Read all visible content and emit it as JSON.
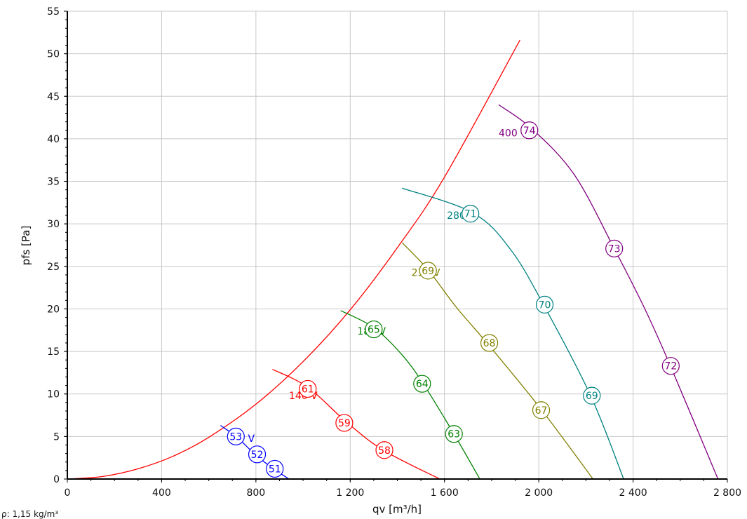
{
  "chart_data": {
    "type": "line",
    "xlabel": "qv [m³/h]",
    "ylabel": "pfs [Pa]",
    "xlim": [
      0,
      2800
    ],
    "ylim": [
      0,
      55
    ],
    "x_ticks": [
      0,
      400,
      800,
      1200,
      1600,
      2000,
      2400,
      2800
    ],
    "x_tick_labels": [
      "0",
      "400",
      "800",
      "1 200",
      "1 600",
      "2 000",
      "2 400",
      "2 800"
    ],
    "y_ticks": [
      0,
      5,
      10,
      15,
      20,
      25,
      30,
      35,
      40,
      45,
      50,
      55
    ],
    "y_tick_labels": [
      "0",
      "5",
      "10",
      "15",
      "20",
      "25",
      "30",
      "35",
      "40",
      "45",
      "50",
      "55"
    ],
    "grid": true,
    "footnote": "ρ: 1,15 kg/m³",
    "system_curve": {
      "color": "#ff0000",
      "points": [
        [
          0,
          0
        ],
        [
          150,
          0.3
        ],
        [
          300,
          1.2
        ],
        [
          450,
          2.7
        ],
        [
          600,
          4.9
        ],
        [
          800,
          8.8
        ],
        [
          1000,
          13.8
        ],
        [
          1200,
          19.9
        ],
        [
          1400,
          27.2
        ],
        [
          1600,
          35.5
        ],
        [
          1920,
          51.6
        ]
      ]
    },
    "series": [
      {
        "name": "95 V",
        "color": "#0000ff",
        "label_pos": [
          700,
          4.8
        ],
        "points": [
          [
            650,
            6.3
          ],
          [
            720,
            4.9
          ],
          [
            800,
            2.8
          ],
          [
            870,
            1.3
          ],
          [
            940,
            0
          ]
        ],
        "markers": [
          {
            "x": 715,
            "y": 5.0,
            "label": "53"
          },
          {
            "x": 805,
            "y": 2.9,
            "label": "52"
          },
          {
            "x": 880,
            "y": 1.2,
            "label": "51"
          }
        ]
      },
      {
        "name": "140 V",
        "color": "#ff0000",
        "label_pos": [
          940,
          9.8
        ],
        "points": [
          [
            870,
            12.9
          ],
          [
            1020,
            10.8
          ],
          [
            1180,
            6.8
          ],
          [
            1340,
            3.4
          ],
          [
            1580,
            0
          ]
        ],
        "markers": [
          {
            "x": 1020,
            "y": 10.6,
            "label": "61"
          },
          {
            "x": 1175,
            "y": 6.6,
            "label": "59"
          },
          {
            "x": 1345,
            "y": 3.4,
            "label": "58"
          }
        ]
      },
      {
        "name": "180 V",
        "color": "#008000",
        "label_pos": [
          1230,
          17.4
        ],
        "points": [
          [
            1160,
            19.8
          ],
          [
            1300,
            17.8
          ],
          [
            1420,
            14.6
          ],
          [
            1510,
            11.2
          ],
          [
            1640,
            5.3
          ],
          [
            1750,
            0
          ]
        ],
        "markers": [
          {
            "x": 1300,
            "y": 17.6,
            "label": "65"
          },
          {
            "x": 1505,
            "y": 11.2,
            "label": "64"
          },
          {
            "x": 1640,
            "y": 5.3,
            "label": "63"
          }
        ]
      },
      {
        "name": "230 V",
        "color": "#808000",
        "label_pos": [
          1460,
          24.3
        ],
        "points": [
          [
            1420,
            27.8
          ],
          [
            1530,
            24.6
          ],
          [
            1650,
            20.2
          ],
          [
            1780,
            16.0
          ],
          [
            2010,
            8.2
          ],
          [
            2230,
            0
          ]
        ],
        "markers": [
          {
            "x": 1530,
            "y": 24.5,
            "label": "69"
          },
          {
            "x": 1790,
            "y": 16.0,
            "label": "68"
          },
          {
            "x": 2010,
            "y": 8.1,
            "label": "67"
          }
        ]
      },
      {
        "name": "280 V",
        "color": "#008080",
        "label_pos": [
          1610,
          31.0
        ],
        "points": [
          [
            1420,
            34.2
          ],
          [
            1720,
            31.3
          ],
          [
            1880,
            27.0
          ],
          [
            2020,
            20.5
          ],
          [
            2220,
            9.8
          ],
          [
            2360,
            0
          ]
        ],
        "markers": [
          {
            "x": 1710,
            "y": 31.2,
            "label": "71"
          },
          {
            "x": 2025,
            "y": 20.5,
            "label": "70"
          },
          {
            "x": 2225,
            "y": 9.8,
            "label": "69"
          }
        ]
      },
      {
        "name": "400 V",
        "color": "#800080",
        "label_pos": [
          1830,
          40.7
        ],
        "points": [
          [
            1830,
            44.0
          ],
          [
            1970,
            41.2
          ],
          [
            2150,
            35.8
          ],
          [
            2320,
            27.1
          ],
          [
            2450,
            20.0
          ],
          [
            2560,
            13.2
          ],
          [
            2760,
            0
          ]
        ],
        "markers": [
          {
            "x": 1960,
            "y": 41.0,
            "label": "74"
          },
          {
            "x": 2320,
            "y": 27.1,
            "label": "73"
          },
          {
            "x": 2560,
            "y": 13.3,
            "label": "72"
          }
        ]
      }
    ]
  }
}
